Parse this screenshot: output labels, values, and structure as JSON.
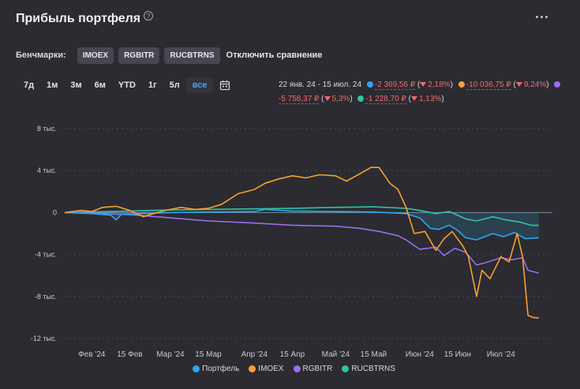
{
  "header": {
    "title": "Прибыль портфеля",
    "help_icon": "question-circle-icon",
    "more_icon": "more-dots-icon"
  },
  "benchmarks": {
    "label": "Бенчмарки:",
    "chips": [
      "IMOEX",
      "RGBITR",
      "RUCBTRNS"
    ],
    "disable_label": "Отключить сравнение"
  },
  "periods": {
    "items": [
      "7д",
      "1м",
      "3м",
      "6м",
      "YTD",
      "1г",
      "5л",
      "все"
    ],
    "active": "все",
    "calendar_icon": "calendar-icon"
  },
  "summary": {
    "date_range": "22 янв. 24 - 15 июл. 24",
    "items": [
      {
        "color": "#2ea5f3",
        "value": "-2 369,56 ₽",
        "pct": "2,18%"
      },
      {
        "color": "#f7a033",
        "value": "-10 036,75 ₽",
        "pct": "9,24%"
      },
      {
        "color": "#9b6cf2",
        "value": "-5 758,37 ₽",
        "pct": "5,3%"
      },
      {
        "color": "#2ec4a2",
        "value": "-1 228,70 ₽",
        "pct": "1,13%"
      }
    ]
  },
  "chart_data": {
    "type": "line",
    "y_ticks": [
      "8 тыс.",
      "4 тыс.",
      "0",
      "-4 тыс.",
      "-8 тыс.",
      "-12 тыс."
    ],
    "y_tick_values": [
      8000,
      4000,
      0,
      -4000,
      -8000,
      -12000
    ],
    "ylim": [
      -12000,
      8000
    ],
    "x_range": [
      "2024-01-22",
      "2024-07-20"
    ],
    "x_ticks": [
      {
        "date": "2024-02-01",
        "label": "Фев '24"
      },
      {
        "date": "2024-02-15",
        "label": "15 Фев"
      },
      {
        "date": "2024-03-01",
        "label": "Мар '24"
      },
      {
        "date": "2024-03-15",
        "label": "15 Мар"
      },
      {
        "date": "2024-04-01",
        "label": "Апр '24"
      },
      {
        "date": "2024-04-15",
        "label": "15 Апр"
      },
      {
        "date": "2024-05-01",
        "label": "Май '24"
      },
      {
        "date": "2024-05-15",
        "label": "15 Май"
      },
      {
        "date": "2024-06-01",
        "label": "Июн '24"
      },
      {
        "date": "2024-06-15",
        "label": "15 Июн"
      },
      {
        "date": "2024-07-01",
        "label": "Июл '24"
      }
    ],
    "grid": "horizontal-dashed",
    "legend_position": "bottom-center",
    "series": [
      {
        "name": "Портфель",
        "color": "#2ea5f3",
        "points": [
          [
            "2024-01-22",
            0
          ],
          [
            "2024-02-01",
            -100
          ],
          [
            "2024-02-08",
            -250
          ],
          [
            "2024-02-10",
            -700
          ],
          [
            "2024-02-12",
            -150
          ],
          [
            "2024-02-20",
            -100
          ],
          [
            "2024-03-01",
            0
          ],
          [
            "2024-03-15",
            50
          ],
          [
            "2024-04-01",
            100
          ],
          [
            "2024-04-05",
            300
          ],
          [
            "2024-04-15",
            150
          ],
          [
            "2024-05-01",
            100
          ],
          [
            "2024-05-15",
            50
          ],
          [
            "2024-05-27",
            -100
          ],
          [
            "2024-06-01",
            -500
          ],
          [
            "2024-06-05",
            -1500
          ],
          [
            "2024-06-08",
            -1600
          ],
          [
            "2024-06-12",
            -1200
          ],
          [
            "2024-06-15",
            -1700
          ],
          [
            "2024-06-18",
            -2400
          ],
          [
            "2024-06-22",
            -2600
          ],
          [
            "2024-06-28",
            -2000
          ],
          [
            "2024-07-02",
            -2300
          ],
          [
            "2024-07-06",
            -1900
          ],
          [
            "2024-07-10",
            -2500
          ],
          [
            "2024-07-15",
            -2400
          ]
        ]
      },
      {
        "name": "IMOEX",
        "color": "#f7a033",
        "points": [
          [
            "2024-01-22",
            0
          ],
          [
            "2024-01-28",
            200
          ],
          [
            "2024-02-01",
            100
          ],
          [
            "2024-02-05",
            500
          ],
          [
            "2024-02-10",
            600
          ],
          [
            "2024-02-15",
            200
          ],
          [
            "2024-02-20",
            -400
          ],
          [
            "2024-02-25",
            0
          ],
          [
            "2024-03-01",
            300
          ],
          [
            "2024-03-05",
            500
          ],
          [
            "2024-03-10",
            300
          ],
          [
            "2024-03-15",
            400
          ],
          [
            "2024-03-20",
            800
          ],
          [
            "2024-03-26",
            1800
          ],
          [
            "2024-04-01",
            2200
          ],
          [
            "2024-04-05",
            2800
          ],
          [
            "2024-04-10",
            3200
          ],
          [
            "2024-04-15",
            3500
          ],
          [
            "2024-04-20",
            3300
          ],
          [
            "2024-04-25",
            3600
          ],
          [
            "2024-05-01",
            3500
          ],
          [
            "2024-05-05",
            3000
          ],
          [
            "2024-05-10",
            3700
          ],
          [
            "2024-05-14",
            4300
          ],
          [
            "2024-05-17",
            4300
          ],
          [
            "2024-05-21",
            2800
          ],
          [
            "2024-05-24",
            2200
          ],
          [
            "2024-05-27",
            500
          ],
          [
            "2024-05-30",
            -2000
          ],
          [
            "2024-06-03",
            -1800
          ],
          [
            "2024-06-07",
            -3600
          ],
          [
            "2024-06-10",
            -2500
          ],
          [
            "2024-06-13",
            -1800
          ],
          [
            "2024-06-17",
            -3200
          ],
          [
            "2024-06-19",
            -4200
          ],
          [
            "2024-06-22",
            -8000
          ],
          [
            "2024-06-24",
            -5500
          ],
          [
            "2024-06-27",
            -6300
          ],
          [
            "2024-07-01",
            -4200
          ],
          [
            "2024-07-04",
            -4700
          ],
          [
            "2024-07-07",
            -2000
          ],
          [
            "2024-07-09",
            -4200
          ],
          [
            "2024-07-11",
            -9800
          ],
          [
            "2024-07-13",
            -10000
          ],
          [
            "2024-07-15",
            -10036.75
          ]
        ]
      },
      {
        "name": "RGBITR",
        "color": "#9b6cf2",
        "points": [
          [
            "2024-01-22",
            0
          ],
          [
            "2024-02-01",
            -50
          ],
          [
            "2024-02-15",
            -200
          ],
          [
            "2024-03-01",
            -500
          ],
          [
            "2024-03-15",
            -800
          ],
          [
            "2024-04-01",
            -1000
          ],
          [
            "2024-04-15",
            -1200
          ],
          [
            "2024-05-01",
            -1300
          ],
          [
            "2024-05-10",
            -1500
          ],
          [
            "2024-05-17",
            -1800
          ],
          [
            "2024-05-24",
            -2200
          ],
          [
            "2024-05-27",
            -2600
          ],
          [
            "2024-06-01",
            -3500
          ],
          [
            "2024-06-07",
            -3300
          ],
          [
            "2024-06-10",
            -4100
          ],
          [
            "2024-06-14",
            -3400
          ],
          [
            "2024-06-18",
            -3800
          ],
          [
            "2024-06-22",
            -5000
          ],
          [
            "2024-06-25",
            -4800
          ],
          [
            "2024-07-01",
            -4300
          ],
          [
            "2024-07-05",
            -4500
          ],
          [
            "2024-07-09",
            -4300
          ],
          [
            "2024-07-11",
            -5500
          ],
          [
            "2024-07-15",
            -5758.37
          ]
        ]
      },
      {
        "name": "RUCBTRNS",
        "color": "#2ec4a2",
        "points": [
          [
            "2024-01-22",
            0
          ],
          [
            "2024-02-01",
            50
          ],
          [
            "2024-02-15",
            150
          ],
          [
            "2024-03-01",
            250
          ],
          [
            "2024-03-15",
            300
          ],
          [
            "2024-04-01",
            350
          ],
          [
            "2024-04-15",
            400
          ],
          [
            "2024-05-01",
            500
          ],
          [
            "2024-05-15",
            550
          ],
          [
            "2024-05-27",
            400
          ],
          [
            "2024-06-01",
            200
          ],
          [
            "2024-06-07",
            -100
          ],
          [
            "2024-06-12",
            100
          ],
          [
            "2024-06-18",
            -600
          ],
          [
            "2024-06-22",
            -800
          ],
          [
            "2024-06-28",
            -400
          ],
          [
            "2024-07-03",
            -700
          ],
          [
            "2024-07-08",
            -900
          ],
          [
            "2024-07-12",
            -1200
          ],
          [
            "2024-07-15",
            -1228.7
          ]
        ]
      }
    ]
  }
}
